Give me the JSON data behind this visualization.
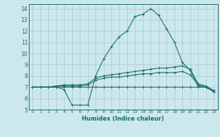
{
  "xlabel": "Humidex (Indice chaleur)",
  "background_color": "#cce8ec",
  "grid_color": "#aacdd4",
  "line_color": "#1a6b6b",
  "xlim": [
    -0.5,
    23.5
  ],
  "ylim": [
    5,
    14.4
  ],
  "xticks": [
    0,
    1,
    2,
    3,
    4,
    5,
    6,
    7,
    8,
    9,
    10,
    11,
    12,
    13,
    14,
    15,
    16,
    17,
    18,
    19,
    20,
    21,
    22,
    23
  ],
  "yticks": [
    5,
    6,
    7,
    8,
    9,
    10,
    11,
    12,
    13,
    14
  ],
  "series": [
    {
      "x": [
        0,
        1,
        2,
        3,
        4,
        5,
        6,
        7,
        8,
        9,
        10,
        11,
        12,
        13,
        14,
        15,
        16,
        17,
        18,
        19,
        20,
        21,
        22,
        23
      ],
      "y": [
        7,
        7,
        7,
        7,
        6.8,
        5.4,
        5.4,
        5.4,
        8.0,
        9.5,
        10.6,
        11.5,
        12.0,
        13.3,
        13.5,
        14.0,
        13.4,
        12.2,
        11.0,
        9.2,
        8.5,
        7.1,
        7.0,
        6.6
      ]
    },
    {
      "x": [
        0,
        1,
        2,
        3,
        4,
        5,
        6,
        7,
        8,
        9,
        10,
        11,
        12,
        13,
        14,
        15,
        16,
        17,
        18,
        19,
        20,
        21,
        22,
        23
      ],
      "y": [
        7,
        7,
        7,
        7.1,
        7.2,
        7.2,
        7.2,
        7.3,
        7.8,
        8.0,
        8.1,
        8.2,
        8.3,
        8.4,
        8.5,
        8.6,
        8.7,
        8.7,
        8.8,
        8.9,
        8.6,
        7.3,
        7.1,
        6.7
      ]
    },
    {
      "x": [
        0,
        1,
        2,
        3,
        4,
        5,
        6,
        7,
        8,
        9,
        10,
        11,
        12,
        13,
        14,
        15,
        16,
        17,
        18,
        19,
        20,
        21,
        22,
        23
      ],
      "y": [
        7,
        7,
        7,
        7.1,
        7.1,
        7.1,
        7.1,
        7.2,
        7.6,
        7.8,
        7.9,
        7.9,
        8.0,
        8.1,
        8.2,
        8.2,
        8.3,
        8.3,
        8.3,
        8.4,
        8.1,
        7.2,
        7.0,
        6.6
      ]
    },
    {
      "x": [
        0,
        1,
        2,
        3,
        4,
        5,
        6,
        7,
        8,
        9,
        10,
        11,
        12,
        13,
        14,
        15,
        16,
        17,
        18,
        19,
        20,
        21,
        22,
        23
      ],
      "y": [
        7,
        7,
        7,
        7.0,
        7.0,
        7.0,
        7.0,
        7.0,
        7.0,
        7.0,
        7.0,
        7.0,
        7.0,
        7.0,
        7.0,
        7.0,
        7.0,
        7.0,
        7.0,
        7.0,
        7.0,
        7.0,
        7.0,
        6.6
      ]
    }
  ]
}
